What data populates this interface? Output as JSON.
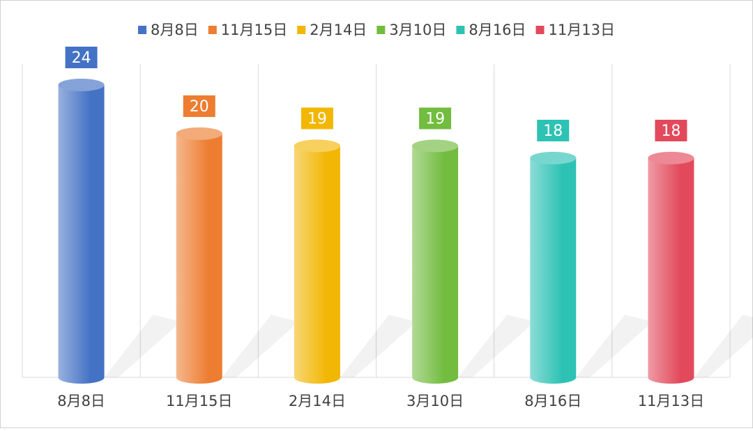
{
  "chart_data": {
    "type": "bar",
    "categories": [
      "8月8日",
      "11月15日",
      "2月14日",
      "3月10日",
      "8月16日",
      "11月13日"
    ],
    "values": [
      24,
      20,
      19,
      19,
      18,
      18
    ],
    "colors": [
      "#4472c4",
      "#ed7d31",
      "#f2b705",
      "#72bc3f",
      "#2dc2b4",
      "#e24a5c"
    ],
    "legend": "top",
    "grid": true
  }
}
